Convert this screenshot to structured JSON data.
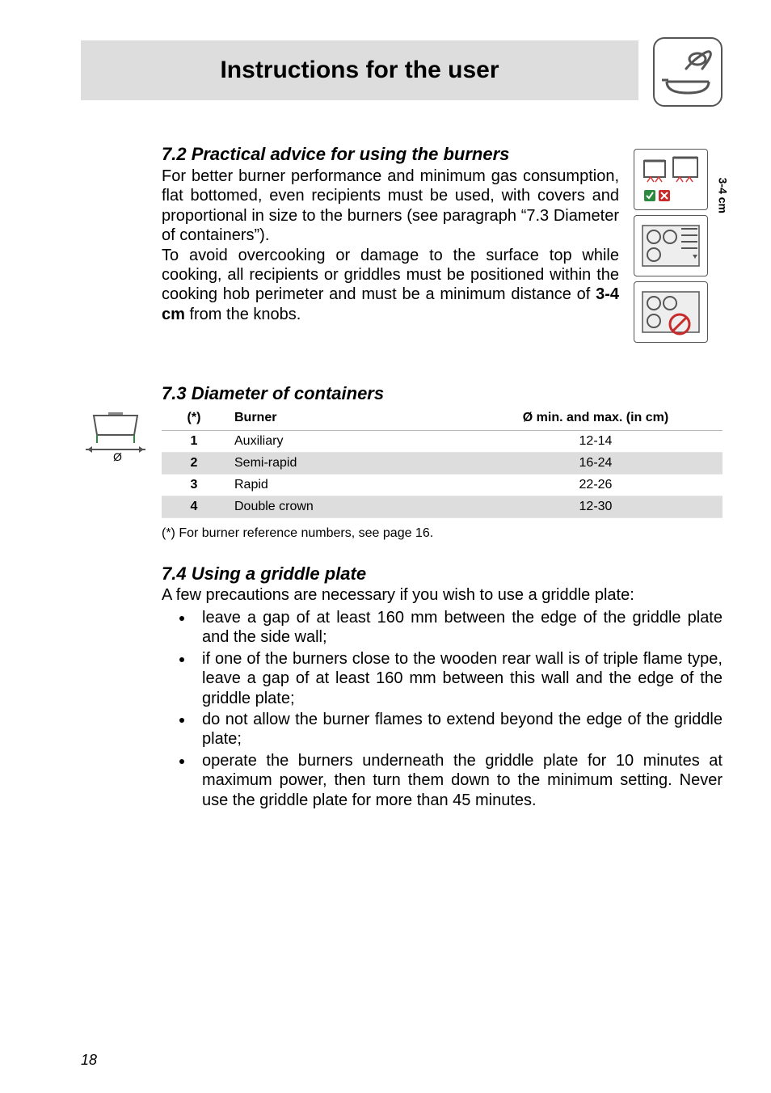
{
  "header": {
    "title": "Instructions for the user",
    "header_bg": "#dddddd",
    "title_fontsize": 30
  },
  "section72": {
    "heading": "7.2 Practical advice for using the burners",
    "para1": "For better burner performance and minimum gas consumption, flat bottomed, even recipients must be used, with covers and proportional in size to the burners (see paragraph “7.3 Diameter of containers”).",
    "para2_pre": "To avoid overcooking or damage to the surface top while cooking, all recipients or griddles must be positioned within the cooking hob perimeter and must be a minimum distance of ",
    "para2_bold": "3-4 cm",
    "para2_post": " from the knobs.",
    "side_label": "3-4 cm"
  },
  "section73": {
    "heading": "7.3 Diameter of containers",
    "col_ref": "(*)",
    "col_burner": "Burner",
    "col_dia": "Ø min. and max. (in cm)",
    "rows": [
      {
        "ref": "1",
        "burner": "Auxiliary",
        "dia": "12-14",
        "shaded": false
      },
      {
        "ref": "2",
        "burner": "Semi-rapid",
        "dia": "16-24",
        "shaded": true
      },
      {
        "ref": "3",
        "burner": "Rapid",
        "dia": "22-26",
        "shaded": false
      },
      {
        "ref": "4",
        "burner": "Double crown",
        "dia": "12-30",
        "shaded": true
      }
    ],
    "footnote": "(*) For burner reference numbers, see page 16.",
    "diameter_symbol": "Ø"
  },
  "section74": {
    "heading": "7.4  Using a griddle plate",
    "intro": "A few precautions are necessary if you wish to use a griddle plate:",
    "bullets": [
      "leave a gap of at least 160 mm between the edge of the griddle plate and the side wall;",
      "if one of the burners close to the wooden rear wall is of triple flame type, leave a gap of at least 160 mm between this wall and the edge of the griddle plate;",
      "do not allow the burner flames to extend beyond the edge of the griddle plate;",
      "operate the burners underneath the griddle plate for 10 minutes at maximum power, then turn them down to the minimum setting. Never use the griddle plate for more than 45 minutes."
    ]
  },
  "page_number": "18",
  "style": {
    "body_fontsize": 20,
    "heading_fontsize": 22,
    "table_fontsize": 16,
    "shade_color": "#dddddd",
    "text_color": "#000000",
    "background_color": "#ffffff"
  }
}
